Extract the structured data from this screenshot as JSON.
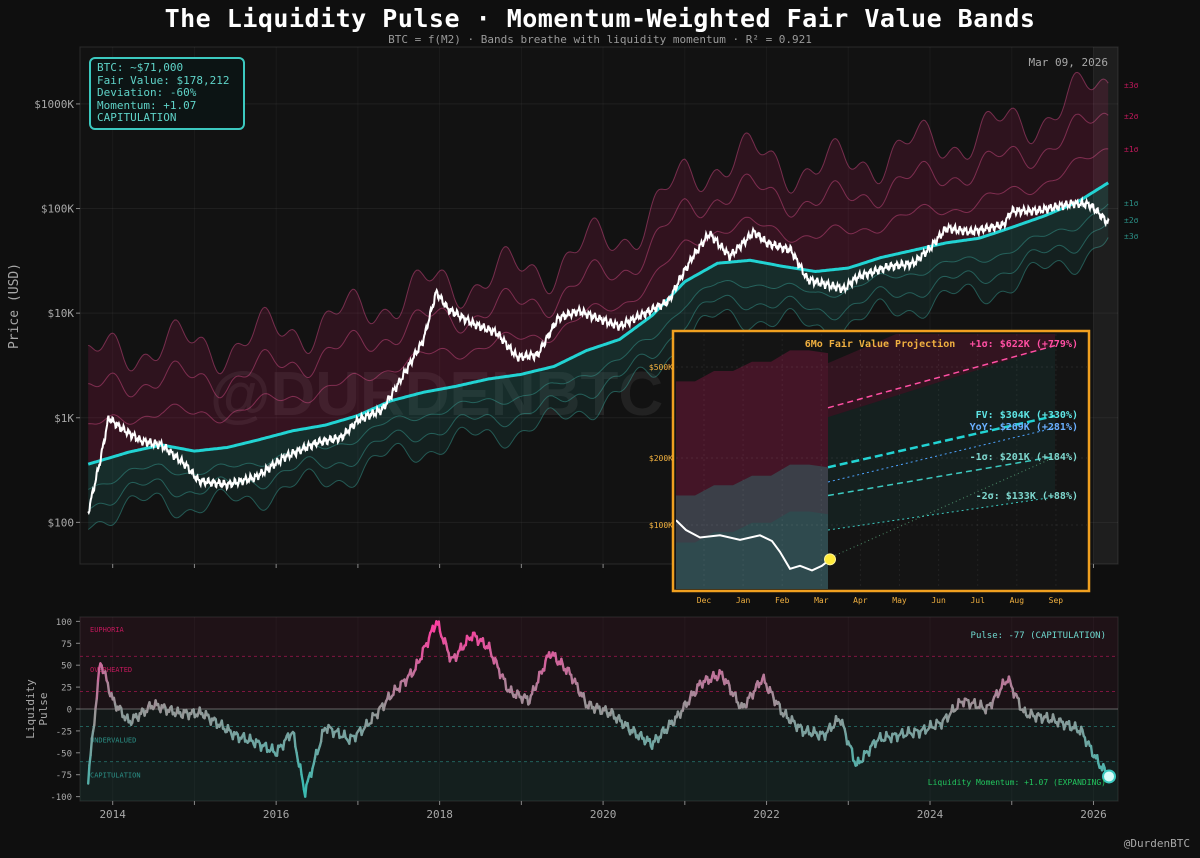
{
  "title": "The Liquidity Pulse  ·  Momentum-Weighted Fair Value Bands",
  "subtitle": "BTC = f(M2)  ·  Bands breathe with liquidity momentum  ·  R² = 0.921",
  "date_label": "Mar 09, 2026",
  "watermark": "@DURDENBTC",
  "handle": "@DurdenBTC",
  "info_box": {
    "btc": "BTC: ~$71,000",
    "fair_value": "Fair Value: $178,212",
    "deviation": "Deviation: -60%",
    "momentum": "Momentum: +1.07",
    "regime": "CAPITULATION"
  },
  "colors": {
    "background": "#0f0f0f",
    "fair_value": "#22d3d3",
    "price": "#ffffff",
    "upper_band": "#c2185b",
    "lower_band": "#2b8f86",
    "inset_border": "#f0a020",
    "euphoria": "#ff4fa3",
    "capitulation": "#3cc9c0"
  },
  "chart_data": [
    {
      "type": "line",
      "title": "",
      "ylabel": "Price (USD)",
      "yscale": "log",
      "ylim": [
        40,
        3500000
      ],
      "xlim": [
        2013.6,
        2026.3
      ],
      "yticks": [
        "$100",
        "$1K",
        "$10K",
        "$100K",
        "$1000K"
      ],
      "xticks": [
        "2014",
        "2016",
        "2018",
        "2020",
        "2022",
        "2024",
        "2026"
      ],
      "band_labels": [
        "±3σ",
        "±2σ",
        "±1σ",
        "±1σ",
        "±2σ",
        "±3σ"
      ],
      "series": [
        {
          "name": "BTC",
          "x": [
            2013.7,
            2013.85,
            2013.95,
            2014.1,
            2014.35,
            2014.6,
            2014.9,
            2015.05,
            2015.4,
            2015.75,
            2016.1,
            2016.5,
            2016.8,
            2017.0,
            2017.3,
            2017.55,
            2017.8,
            2017.96,
            2018.1,
            2018.4,
            2018.7,
            2018.95,
            2019.2,
            2019.45,
            2019.7,
            2020.2,
            2020.4,
            2020.8,
            2020.95,
            2021.1,
            2021.3,
            2021.55,
            2021.85,
            2022.0,
            2022.3,
            2022.5,
            2022.95,
            2023.1,
            2023.5,
            2023.8,
            2024.0,
            2024.2,
            2024.5,
            2024.9,
            2025.0,
            2025.3,
            2025.75,
            2025.95,
            2026.1,
            2026.19
          ],
          "values": [
            125,
            400,
            1000,
            800,
            600,
            550,
            350,
            250,
            230,
            270,
            420,
            580,
            650,
            950,
            1200,
            2500,
            5500,
            16000,
            11000,
            8000,
            6500,
            3800,
            4000,
            9000,
            10500,
            7500,
            9000,
            13000,
            22000,
            35000,
            58000,
            35000,
            60000,
            47000,
            40000,
            21000,
            17000,
            22000,
            28000,
            30000,
            42000,
            65000,
            60000,
            70000,
            95000,
            95000,
            112000,
            110000,
            85000,
            71000
          ]
        },
        {
          "name": "Fair Value",
          "x": [
            2013.7,
            2014.2,
            2014.6,
            2015.0,
            2015.4,
            2015.8,
            2016.2,
            2016.6,
            2017.0,
            2017.4,
            2017.8,
            2018.2,
            2018.6,
            2019.0,
            2019.4,
            2019.8,
            2020.2,
            2020.6,
            2021.0,
            2021.4,
            2021.8,
            2022.2,
            2022.6,
            2023.0,
            2023.4,
            2023.8,
            2024.2,
            2024.6,
            2025.0,
            2025.4,
            2025.8,
            2026.19
          ],
          "values": [
            360,
            470,
            550,
            480,
            520,
            620,
            750,
            850,
            1050,
            1450,
            1750,
            2000,
            2350,
            2600,
            3100,
            4400,
            5600,
            9500,
            20000,
            30000,
            32000,
            28000,
            25000,
            27000,
            34000,
            40000,
            47000,
            52000,
            66000,
            85000,
            115000,
            178212
          ]
        }
      ]
    },
    {
      "type": "line",
      "title": "6Mo Fair Value Projection",
      "xticks": [
        "Dec",
        "Jan",
        "Feb",
        "Mar",
        "Apr",
        "May",
        "Jun",
        "Jul",
        "Aug",
        "Sep"
      ],
      "yticks": [
        "$100K",
        "$200K",
        "$500K"
      ],
      "annotations": [
        "+1σ: $622K (+779%)",
        "FV: $304K (+330%)",
        "YoY: $269K (+281%)",
        "-1σ: $201K (+184%)",
        "-2σ: $133K (+88%)"
      ],
      "series": [
        {
          "name": "+1σ",
          "value": 622000,
          "change_pct": 779
        },
        {
          "name": "FV",
          "value": 304000,
          "change_pct": 330
        },
        {
          "name": "YoY",
          "value": 269000,
          "change_pct": 281
        },
        {
          "name": "-1σ",
          "value": 201000,
          "change_pct": 184
        },
        {
          "name": "-2σ",
          "value": 133000,
          "change_pct": 88
        }
      ]
    },
    {
      "type": "line",
      "ylabel": "Liquidity Pulse",
      "ylim": [
        -105,
        105
      ],
      "yticks": [
        "100",
        "75",
        "50",
        "25",
        "0",
        "-25",
        "-50",
        "-75",
        "-100"
      ],
      "zones": [
        "EUPHORIA",
        "OVERHEATED",
        "UNDERVALUED",
        "CAPITULATION"
      ],
      "pulse_label": "Pulse: -77  (CAPITULATION)",
      "momentum_label": "Liquidity Momentum: +1.07 (EXPANDING)",
      "series": [
        {
          "name": "Pulse",
          "x": [
            2013.7,
            2013.85,
            2014.0,
            2014.2,
            2014.5,
            2014.8,
            2015.1,
            2015.5,
            2015.8,
            2016.0,
            2016.2,
            2016.35,
            2016.6,
            2016.9,
            2017.1,
            2017.4,
            2017.7,
            2017.96,
            2018.15,
            2018.4,
            2018.6,
            2018.85,
            2019.1,
            2019.35,
            2019.6,
            2019.8,
            2020.1,
            2020.35,
            2020.6,
            2020.9,
            2021.2,
            2021.45,
            2021.7,
            2021.95,
            2022.2,
            2022.45,
            2022.7,
            2022.9,
            2023.1,
            2023.35,
            2023.6,
            2023.9,
            2024.15,
            2024.4,
            2024.7,
            2024.95,
            2025.15,
            2025.4,
            2025.6,
            2025.85,
            2026.05,
            2026.19
          ],
          "values": [
            -80,
            55,
            10,
            -15,
            5,
            -5,
            -5,
            -30,
            -40,
            -50,
            -25,
            -95,
            -20,
            -35,
            -20,
            15,
            45,
            100,
            55,
            85,
            70,
            20,
            10,
            65,
            40,
            5,
            -5,
            -25,
            -40,
            -10,
            30,
            40,
            0,
            35,
            -5,
            -25,
            -30,
            -10,
            -65,
            -35,
            -30,
            -25,
            -15,
            10,
            0,
            35,
            -5,
            -10,
            -15,
            -25,
            -60,
            -77
          ]
        }
      ]
    }
  ]
}
